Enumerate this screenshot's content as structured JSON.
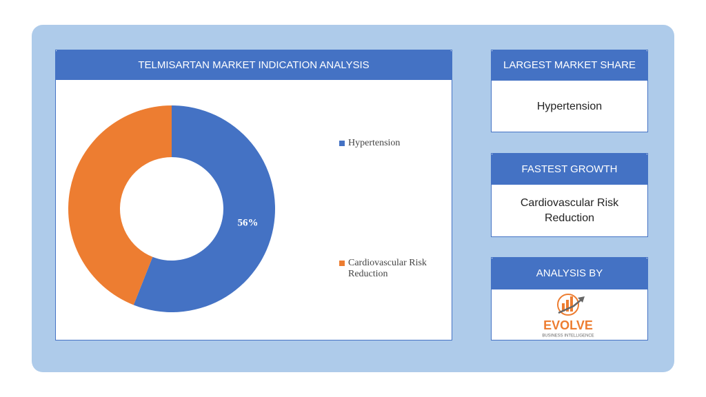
{
  "chart_data": {
    "type": "pie",
    "donut": true,
    "title": "TELMISARTAN MARKET INDICATION ANALYSIS",
    "categories": [
      "Hypertension",
      "Cardiovascular Risk Reduction"
    ],
    "values": [
      56,
      44
    ],
    "value_labels": [
      "56%",
      null
    ],
    "colors": [
      "#4472c4",
      "#ed7d31"
    ],
    "legend": "right"
  },
  "cards": [
    {
      "title": "LARGEST MARKET SHARE",
      "text": "Hypertension"
    },
    {
      "title": "FASTEST GROWTH",
      "text": "Cardiovascular Risk Reduction"
    },
    {
      "title": "ANALYSIS BY"
    }
  ],
  "logo": {
    "name": "EVOLVE",
    "tagline": "BUSINESS INTELLIGENCE"
  }
}
